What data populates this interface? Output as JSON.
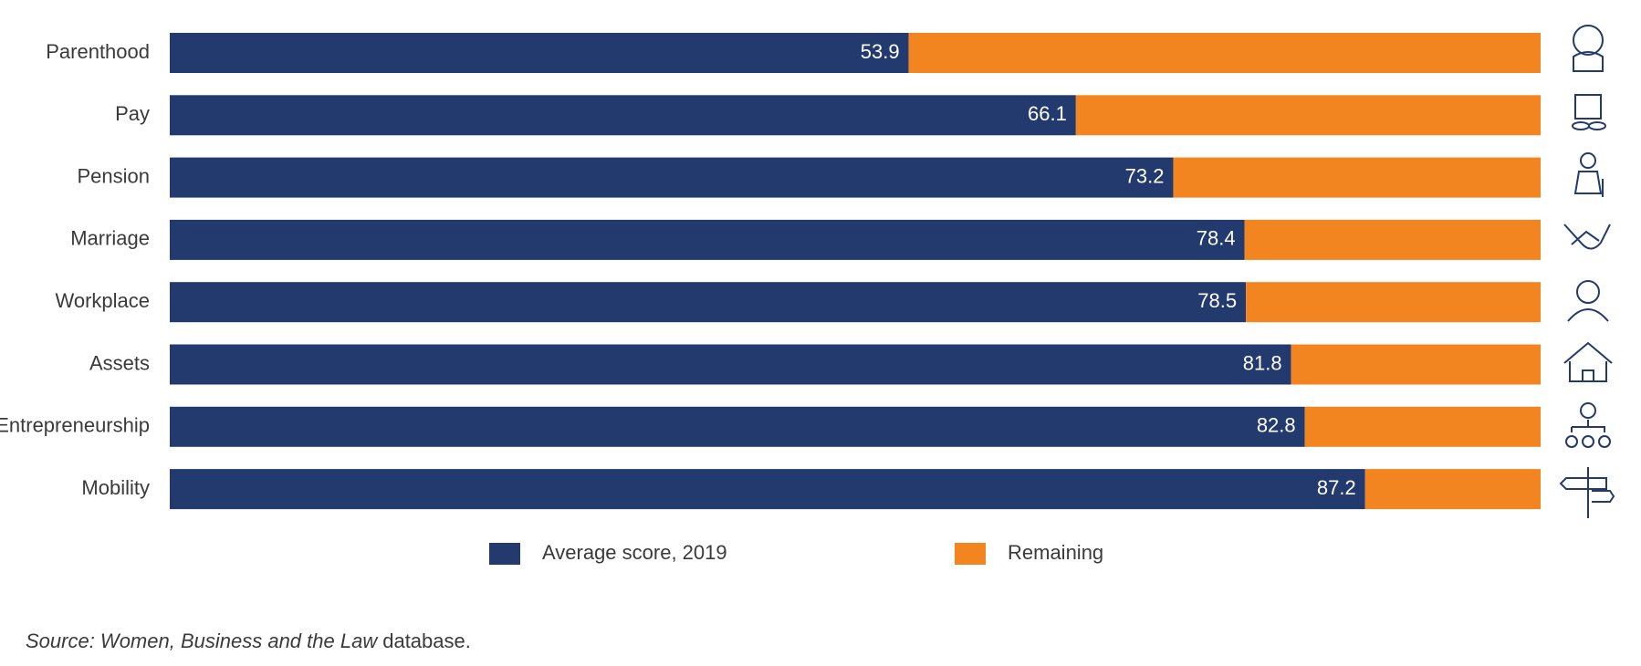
{
  "chart_data": {
    "type": "stacked-bar-horizontal",
    "categories": [
      "Parenthood",
      "Pay",
      "Pension",
      "Marriage",
      "Workplace",
      "Assets",
      "Entrepreneurship",
      "Mobility"
    ],
    "series": [
      {
        "name": "Average score, 2019",
        "color": "#233a6e",
        "values": [
          53.9,
          66.1,
          73.2,
          78.4,
          78.5,
          81.8,
          82.8,
          87.2
        ]
      },
      {
        "name": "Remaining",
        "color": "#f28520",
        "values": [
          46.1,
          33.9,
          26.8,
          21.6,
          21.5,
          18.2,
          17.2,
          12.8
        ]
      }
    ],
    "xlim": [
      0,
      100
    ],
    "source": {
      "italic": "Source: Women, Business and the Law",
      "plain": "database."
    }
  }
}
